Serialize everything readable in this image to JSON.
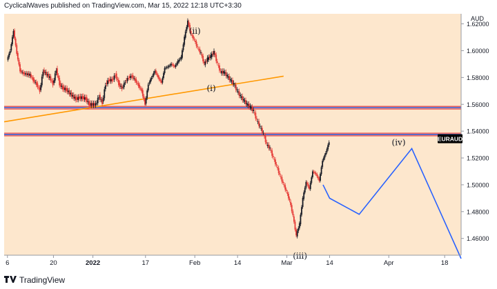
{
  "header": {
    "published_text": "CyclicalWaves published on TradingView.com, Mar 15, 2022 12:18 UTC+3:30"
  },
  "footer": {
    "brand_icon": "tradingview-logo-icon",
    "brand_text": "TradingView"
  },
  "colors": {
    "background": "#fde7cd",
    "candle_up": "#131722",
    "candle_down": "#e53935",
    "trendline": "#ff9800",
    "zone_border_red": "#e53935",
    "zone_border_blue": "#5b6cc9",
    "projection": "#2962ff",
    "price_tag_bg": "#000000"
  },
  "chart_data": {
    "type": "line",
    "title": "",
    "symbol_tag": "EURAUD",
    "currency": "AUD",
    "x_ticks": [
      "6",
      "20",
      "2022",
      "17",
      "Feb",
      "14",
      "Mar",
      "14",
      "Apr",
      "18"
    ],
    "x_tick_days": [
      0,
      14,
      26,
      42,
      57,
      70,
      85,
      98,
      116,
      133
    ],
    "y_ticks": [
      "1.62000",
      "1.60000",
      "1.58000",
      "1.56000",
      "1.54000",
      "1.52000",
      "1.50000",
      "1.48000",
      "1.46000"
    ],
    "ylim": [
      1.4475,
      1.6275
    ],
    "xlim_days": [
      -1,
      138
    ],
    "price_series": [
      [
        0,
        1.593
      ],
      [
        1,
        1.6
      ],
      [
        2,
        1.615
      ],
      [
        3,
        1.598
      ],
      [
        4,
        1.585
      ],
      [
        5,
        1.583
      ],
      [
        7,
        1.582
      ],
      [
        8,
        1.578
      ],
      [
        9,
        1.575
      ],
      [
        10,
        1.57
      ],
      [
        11,
        1.585
      ],
      [
        13,
        1.58
      ],
      [
        14,
        1.575
      ],
      [
        15,
        1.586
      ],
      [
        16,
        1.575
      ],
      [
        17,
        1.572
      ],
      [
        18,
        1.571
      ],
      [
        20,
        1.566
      ],
      [
        21,
        1.564
      ],
      [
        22,
        1.565
      ],
      [
        23,
        1.565
      ],
      [
        24,
        1.564
      ],
      [
        25,
        1.56
      ],
      [
        27,
        1.56
      ],
      [
        28,
        1.566
      ],
      [
        29,
        1.561
      ],
      [
        30,
        1.575
      ],
      [
        31,
        1.578
      ],
      [
        32,
        1.578
      ],
      [
        33,
        1.582
      ],
      [
        34,
        1.575
      ],
      [
        35,
        1.572
      ],
      [
        36,
        1.577
      ],
      [
        37,
        1.58
      ],
      [
        38,
        1.581
      ],
      [
        39,
        1.578
      ],
      [
        40,
        1.574
      ],
      [
        41,
        1.57
      ],
      [
        42,
        1.56
      ],
      [
        43,
        1.575
      ],
      [
        44,
        1.58
      ],
      [
        45,
        1.585
      ],
      [
        46,
        1.58
      ],
      [
        47,
        1.576
      ],
      [
        48,
        1.587
      ],
      [
        49,
        1.588
      ],
      [
        50,
        1.59
      ],
      [
        51,
        1.588
      ],
      [
        52,
        1.592
      ],
      [
        53,
        1.595
      ],
      [
        54,
        1.61
      ],
      [
        55,
        1.622
      ],
      [
        56,
        1.612
      ],
      [
        57,
        1.608
      ],
      [
        58,
        1.602
      ],
      [
        59,
        1.598
      ],
      [
        60,
        1.59
      ],
      [
        61,
        1.594
      ],
      [
        62,
        1.596
      ],
      [
        63,
        1.599
      ],
      [
        64,
        1.59
      ],
      [
        65,
        1.584
      ],
      [
        66,
        1.584
      ],
      [
        67,
        1.581
      ],
      [
        68,
        1.578
      ],
      [
        69,
        1.575
      ],
      [
        70,
        1.57
      ],
      [
        71,
        1.566
      ],
      [
        72,
        1.563
      ],
      [
        73,
        1.56
      ],
      [
        74,
        1.558
      ],
      [
        75,
        1.555
      ],
      [
        76,
        1.548
      ],
      [
        77,
        1.543
      ],
      [
        78,
        1.538
      ],
      [
        79,
        1.53
      ],
      [
        80,
        1.527
      ],
      [
        81,
        1.52
      ],
      [
        82,
        1.514
      ],
      [
        83,
        1.507
      ],
      [
        84,
        1.501
      ],
      [
        85,
        1.495
      ],
      [
        86,
        1.488
      ],
      [
        87,
        1.477
      ],
      [
        88,
        1.462
      ],
      [
        89,
        1.471
      ],
      [
        90,
        1.49
      ],
      [
        91,
        1.502
      ],
      [
        92,
        1.497
      ],
      [
        93,
        1.51
      ],
      [
        94,
        1.508
      ],
      [
        95,
        1.503
      ],
      [
        96,
        1.518
      ],
      [
        97,
        1.524
      ],
      [
        98,
        1.532
      ]
    ],
    "trendline": [
      [
        -1,
        1.547
      ],
      [
        84,
        1.581
      ]
    ],
    "zones": [
      {
        "top": 1.5585,
        "bottom": 1.5565
      },
      {
        "top": 1.5385,
        "bottom": 1.5365
      }
    ],
    "projection": [
      [
        96,
        1.5
      ],
      [
        98,
        1.49
      ],
      [
        107,
        1.478
      ],
      [
        123,
        1.527
      ],
      [
        138,
        1.445
      ]
    ],
    "wave_labels": [
      {
        "text": "(i)",
        "day": 62,
        "price": 1.57
      },
      {
        "text": "(ii)",
        "day": 57,
        "price": 1.6125
      },
      {
        "text": "(iii)",
        "day": 89,
        "price": 1.445
      },
      {
        "text": "(iv)",
        "day": 119,
        "price": 1.5295
      }
    ],
    "last_price": 1.53
  }
}
